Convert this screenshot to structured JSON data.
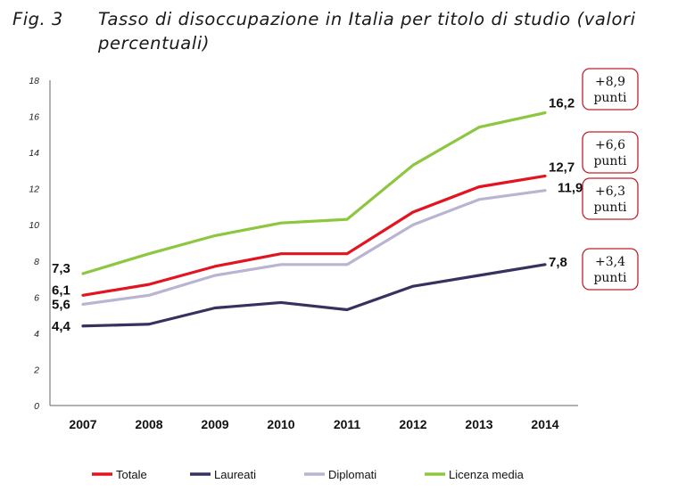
{
  "figure": {
    "label": "Fig. 3",
    "title": "Tasso di disoccupazione in Italia per titolo di studio (valori percentuali)"
  },
  "chart_data": {
    "type": "line",
    "title": "Tasso di disoccupazione in Italia per titolo di studio (valori percentuali)",
    "xlabel": "",
    "ylabel": "",
    "x": [
      "2007",
      "2008",
      "2009",
      "2010",
      "2011",
      "2012",
      "2013",
      "2014"
    ],
    "ylim": [
      0,
      18
    ],
    "yticks": [
      0,
      2,
      4,
      6,
      8,
      10,
      12,
      14,
      16,
      18
    ],
    "grid": false,
    "legend_position": "bottom",
    "series": [
      {
        "name": "Licenza media",
        "color": "#8dc63f",
        "values": [
          7.3,
          8.4,
          9.4,
          10.1,
          10.3,
          13.3,
          15.4,
          16.2
        ]
      },
      {
        "name": "Diplomati",
        "color": "#b9b4d2",
        "values": [
          5.6,
          6.1,
          7.2,
          7.8,
          7.8,
          10.0,
          11.4,
          11.9
        ]
      },
      {
        "name": "Totale",
        "color": "#e3141f",
        "values": [
          6.1,
          6.7,
          7.7,
          8.4,
          8.4,
          10.7,
          12.1,
          12.7
        ]
      },
      {
        "name": "Laureati",
        "color": "#35325f",
        "values": [
          4.4,
          4.5,
          5.4,
          5.7,
          5.3,
          6.6,
          7.2,
          7.8
        ]
      }
    ],
    "start_labels": [
      {
        "series": "Licenza media",
        "text": "7,3"
      },
      {
        "series": "Totale",
        "text": "6,1"
      },
      {
        "series": "Diplomati",
        "text": "5,6"
      },
      {
        "series": "Laureati",
        "text": "4,4"
      }
    ],
    "end_labels": [
      {
        "series": "Licenza media",
        "text": "16,2"
      },
      {
        "series": "Totale",
        "text": "12,7"
      },
      {
        "series": "Diplomati",
        "text": "11,9"
      },
      {
        "series": "Laureati",
        "text": "7,8"
      }
    ],
    "annotations": [
      {
        "series": "Licenza media",
        "line1": "+8,9",
        "line2": "punti"
      },
      {
        "series": "Totale",
        "line1": "+6,6",
        "line2": "punti"
      },
      {
        "series": "Diplomati",
        "line1": "+6,3",
        "line2": "punti"
      },
      {
        "series": "Laureati",
        "line1": "+3,4",
        "line2": "punti"
      }
    ],
    "annotation_border_color": "#c0202a",
    "legend": [
      "Totale",
      "Laureati",
      "Diplomati",
      "Licenza media"
    ]
  }
}
